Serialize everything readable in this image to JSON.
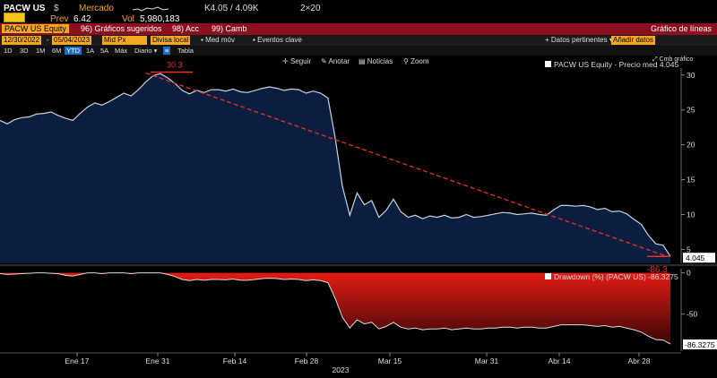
{
  "header": {
    "ticker": "PACW US",
    "market_label": "Mercado",
    "price": "K4.05 / 4.09K",
    "size": "2×20",
    "prev_label": "Prev",
    "prev_value": "6.42",
    "vol_label": "Vol",
    "vol_value": "5,980,183"
  },
  "function_bar": {
    "security": "PACW US Equity",
    "suggested": "96) Gráficos sugeridos",
    "actions": "98) Acc",
    "change": "99) Camb",
    "right_label": "Gráfico de líneas"
  },
  "controls": {
    "date_from": "12/30/2022",
    "date_to": "05/04/2023",
    "field": "Mid Px",
    "currency": "Divisa local",
    "mov_avg": "Med móv",
    "key_events": "Eventos clave",
    "relevant_data": "Datos pertinentes",
    "add_study": "Añadir datos",
    "tabla": "Tabla"
  },
  "periods": [
    "1D",
    "3D",
    "1M",
    "6M",
    "YTD",
    "1A",
    "5A",
    "Máx",
    "Diario"
  ],
  "active_period": "YTD",
  "chart_toolbar": {
    "follow": "Seguir",
    "annotate": "Anotar",
    "news": "Noticias",
    "zoom": "Zoom",
    "cmb": "Cmb gráfico"
  },
  "chart_data": [
    {
      "type": "area",
      "legend": "PACW US Equity - Precio med 4.045",
      "last_value_label": "4.045",
      "y_ticks": [
        "30",
        "25",
        "20",
        "15",
        "10",
        "5"
      ],
      "ylim": [
        3,
        31
      ],
      "annotation_high": "30.3",
      "annotation_low": "-86.3",
      "x_labels": [
        "Ene 17",
        "Ene 31",
        "Feb 14",
        "Feb 28",
        "Mar 15",
        "Mar 31",
        "Abr 14",
        "Abr 28"
      ],
      "x_year_label": "2023",
      "values": [
        23.5,
        23.0,
        23.6,
        23.9,
        24.0,
        24.4,
        24.5,
        24.7,
        24.2,
        23.8,
        23.5,
        24.5,
        25.4,
        26.0,
        25.7,
        26.2,
        26.8,
        27.4,
        27.0,
        27.9,
        29.0,
        29.9,
        30.2,
        29.6,
        28.8,
        27.8,
        27.3,
        27.8,
        27.5,
        27.9,
        27.9,
        27.7,
        28.0,
        27.6,
        27.5,
        27.8,
        28.1,
        28.3,
        28.1,
        27.8,
        28.0,
        27.9,
        27.4,
        27.7,
        27.4,
        26.7,
        21.0,
        14.0,
        9.9,
        13.1,
        11.4,
        12.0,
        9.6,
        10.6,
        12.2,
        10.4,
        9.6,
        9.9,
        9.4,
        9.8,
        9.6,
        9.9,
        9.5,
        9.6,
        10.0,
        9.6,
        9.7,
        9.9,
        10.1,
        10.3,
        10.2,
        10.0,
        10.1,
        10.2,
        10.0,
        9.9,
        10.7,
        11.3,
        11.3,
        11.2,
        11.3,
        11.1,
        10.7,
        10.9,
        10.4,
        10.5,
        10.1,
        9.3,
        8.6,
        7.0,
        5.8,
        5.6,
        4.0
      ],
      "trend_start": 30.3,
      "trend_end": 4.0
    },
    {
      "type": "area",
      "legend": "Drawdown (%) (PACW US) -86.3275",
      "last_value_label": "-86.3275",
      "y_ticks": [
        "0",
        "-50"
      ],
      "ylim": [
        -95,
        5
      ],
      "values": [
        -1.0,
        -2.0,
        -1.5,
        -1.0,
        -0.5,
        0.0,
        0.0,
        -0.5,
        -1.0,
        -3.0,
        -4.0,
        -2.0,
        0.0,
        0.0,
        -1.0,
        0.0,
        0.0,
        0.0,
        -1.0,
        0.0,
        0.0,
        0.0,
        0.0,
        -2.0,
        -4.5,
        -8.0,
        -9.5,
        -8.0,
        -9.0,
        -8.0,
        -8.0,
        -8.5,
        -7.5,
        -9.0,
        -9.0,
        -8.0,
        -7.0,
        -6.5,
        -7.0,
        -8.0,
        -7.5,
        -8.0,
        -9.5,
        -8.5,
        -9.5,
        -12.0,
        -31.0,
        -54.0,
        -67.0,
        -57.0,
        -62.0,
        -60.0,
        -68.0,
        -65.0,
        -60.0,
        -66.0,
        -68.0,
        -67.0,
        -69.0,
        -68.0,
        -68.0,
        -67.0,
        -69.0,
        -68.0,
        -67.0,
        -68.0,
        -68.0,
        -67.0,
        -67.0,
        -66.0,
        -66.0,
        -67.0,
        -66.0,
        -66.0,
        -67.0,
        -67.0,
        -65.0,
        -63.0,
        -63.0,
        -63.0,
        -63.0,
        -64.0,
        -65.0,
        -64.0,
        -66.0,
        -65.0,
        -67.0,
        -69.0,
        -72.0,
        -77.0,
        -81.0,
        -81.5,
        -86.3
      ]
    }
  ],
  "colors": {
    "area_fill": "#0b1e3f",
    "area_line": "#c8d2e0",
    "trend": "#e8302a",
    "drawdown_top": "#e21b14",
    "drawdown_bottom": "#3a0606",
    "orange": "#f5a623",
    "red_bar": "#8b0f1c"
  }
}
